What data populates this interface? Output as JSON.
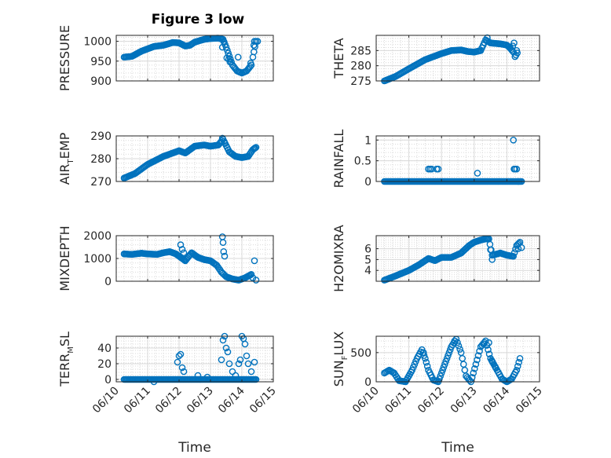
{
  "figure": {
    "title": "Figure 3 low"
  },
  "chart_data": [
    {
      "type": "scatter",
      "position": "top-left",
      "ylabel_main": "PRESSURE",
      "ylabel_sub": "",
      "ylim": [
        900,
        1015
      ],
      "yticks": [
        900,
        950,
        1000
      ],
      "yticklabels": [
        "900",
        "950",
        "1000"
      ],
      "xlim": [
        0,
        5
      ],
      "xticks": [
        0,
        1,
        2,
        3,
        4,
        5
      ],
      "show_xticklabels": false,
      "grid": true,
      "minor_grid": true,
      "keyframes": [
        [
          0.25,
          960
        ],
        [
          0.5,
          962
        ],
        [
          0.8,
          975
        ],
        [
          1.2,
          987
        ],
        [
          1.5,
          990
        ],
        [
          1.8,
          997
        ],
        [
          2.0,
          996
        ],
        [
          2.2,
          988
        ],
        [
          2.35,
          990
        ],
        [
          2.5,
          998
        ],
        [
          2.8,
          1005
        ],
        [
          3.0,
          1007
        ],
        [
          3.25,
          1008
        ],
        [
          3.4,
          1005
        ],
        [
          3.5,
          985
        ],
        [
          3.7,
          940
        ],
        [
          3.85,
          925
        ],
        [
          4.0,
          920
        ],
        [
          4.15,
          925
        ],
        [
          4.3,
          940
        ],
        [
          4.35,
          960
        ],
        [
          4.45,
          1000
        ]
      ],
      "extra_points": [
        [
          3.38,
          985
        ],
        [
          3.42,
          1000
        ],
        [
          3.52,
          958
        ],
        [
          3.58,
          955
        ],
        [
          3.62,
          948
        ],
        [
          3.88,
          960
        ],
        [
          4.28,
          945
        ],
        [
          4.4,
          1000
        ],
        [
          4.5,
          1000
        ],
        [
          4.38,
          990
        ]
      ]
    },
    {
      "type": "scatter",
      "position": "top-right",
      "ylabel_main": "THETA",
      "ylabel_sub": "",
      "ylim": [
        275,
        290
      ],
      "yticks": [
        275,
        280,
        285
      ],
      "yticklabels": [
        "275",
        "280",
        "285"
      ],
      "xlim": [
        0,
        5
      ],
      "xticks": [
        0,
        1,
        2,
        3,
        4,
        5
      ],
      "show_xticklabels": false,
      "grid": true,
      "minor_grid": true,
      "keyframes": [
        [
          0.25,
          275
        ],
        [
          0.6,
          276.5
        ],
        [
          1.0,
          279
        ],
        [
          1.5,
          282
        ],
        [
          2.0,
          284
        ],
        [
          2.3,
          285
        ],
        [
          2.6,
          285.2
        ],
        [
          2.8,
          284.7
        ],
        [
          3.0,
          284.5
        ],
        [
          3.2,
          285
        ],
        [
          3.35,
          288.5
        ],
        [
          3.5,
          287.5
        ],
        [
          3.8,
          287.2
        ],
        [
          4.0,
          286.8
        ],
        [
          4.1,
          285.8
        ],
        [
          4.2,
          284.5
        ],
        [
          4.25,
          283
        ],
        [
          4.3,
          285
        ]
      ],
      "extra_points": [
        [
          3.4,
          289.2
        ],
        [
          4.18,
          286.5
        ],
        [
          4.22,
          287.5
        ],
        [
          4.28,
          283.5
        ],
        [
          4.32,
          284.2
        ]
      ]
    },
    {
      "type": "scatter",
      "position": "middle-left",
      "ylabel_main": "AIR",
      "ylabel_sub": "T",
      "ylabel_tail": "EMP",
      "ylim": [
        270,
        290
      ],
      "yticks": [
        270,
        280,
        290
      ],
      "yticklabels": [
        "270",
        "280",
        "290"
      ],
      "xlim": [
        0,
        5
      ],
      "xticks": [
        0,
        1,
        2,
        3,
        4,
        5
      ],
      "show_xticklabels": false,
      "grid": true,
      "minor_grid": true,
      "keyframes": [
        [
          0.25,
          271.5
        ],
        [
          0.6,
          273.5
        ],
        [
          1.0,
          277.5
        ],
        [
          1.5,
          281
        ],
        [
          2.0,
          283.5
        ],
        [
          2.2,
          282.5
        ],
        [
          2.5,
          285.5
        ],
        [
          2.8,
          286
        ],
        [
          3.0,
          285.5
        ],
        [
          3.25,
          286
        ],
        [
          3.4,
          288.5
        ],
        [
          3.6,
          283
        ],
        [
          3.8,
          281
        ],
        [
          4.0,
          280.5
        ],
        [
          4.2,
          281
        ],
        [
          4.35,
          284
        ],
        [
          4.45,
          285
        ]
      ],
      "extra_points": [
        [
          3.38,
          289
        ],
        [
          3.45,
          287
        ],
        [
          4.4,
          284.5
        ]
      ]
    },
    {
      "type": "scatter",
      "position": "middle-right",
      "ylabel_main": "RAINFALL",
      "ylabel_sub": "",
      "ylim": [
        0,
        1.1
      ],
      "yticks": [
        0,
        0.5,
        1
      ],
      "yticklabels": [
        "0",
        "0.5",
        "1"
      ],
      "xlim": [
        0,
        5
      ],
      "xticks": [
        0,
        1,
        2,
        3,
        4,
        5
      ],
      "show_xticklabels": false,
      "grid": true,
      "minor_grid": true,
      "keyframes": [
        [
          0.25,
          0
        ],
        [
          4.45,
          0
        ]
      ],
      "extra_points": [
        [
          1.6,
          0.3
        ],
        [
          1.65,
          0.3
        ],
        [
          1.7,
          0.3
        ],
        [
          1.85,
          0.3
        ],
        [
          1.9,
          0.3
        ],
        [
          3.1,
          0.2
        ],
        [
          4.2,
          1.0
        ],
        [
          4.22,
          0.3
        ],
        [
          4.25,
          0.3
        ],
        [
          4.3,
          0.3
        ],
        [
          4.35,
          0
        ]
      ]
    },
    {
      "type": "scatter",
      "position": "lower-left",
      "ylabel_main": "MIXDEPTH",
      "ylabel_sub": "",
      "ylim": [
        0,
        2000
      ],
      "yticks": [
        0,
        1000,
        2000
      ],
      "yticklabels": [
        "0",
        "1000",
        "2000"
      ],
      "xlim": [
        0,
        5
      ],
      "xticks": [
        0,
        1,
        2,
        3,
        4,
        5
      ],
      "show_xticklabels": false,
      "grid": true,
      "minor_grid": true,
      "keyframes": [
        [
          0.25,
          1200
        ],
        [
          0.5,
          1180
        ],
        [
          0.8,
          1230
        ],
        [
          1.0,
          1200
        ],
        [
          1.3,
          1180
        ],
        [
          1.5,
          1250
        ],
        [
          1.7,
          1300
        ],
        [
          1.9,
          1200
        ],
        [
          2.0,
          1100
        ],
        [
          2.2,
          900
        ],
        [
          2.4,
          1250
        ],
        [
          2.6,
          1050
        ],
        [
          2.8,
          950
        ],
        [
          3.0,
          900
        ],
        [
          3.2,
          700
        ],
        [
          3.35,
          400
        ],
        [
          3.5,
          200
        ],
        [
          3.7,
          100
        ],
        [
          3.9,
          50
        ],
        [
          4.1,
          150
        ],
        [
          4.3,
          300
        ]
      ],
      "extra_points": [
        [
          2.05,
          1600
        ],
        [
          2.1,
          1400
        ],
        [
          2.15,
          1250
        ],
        [
          3.38,
          1950
        ],
        [
          3.4,
          1700
        ],
        [
          3.42,
          1300
        ],
        [
          3.45,
          1100
        ],
        [
          4.4,
          900
        ],
        [
          4.35,
          150
        ],
        [
          4.45,
          50
        ]
      ]
    },
    {
      "type": "scatter",
      "position": "lower-right",
      "ylabel_main": "H2OMIXRA",
      "ylabel_sub": "",
      "ylim": [
        3,
        7.2
      ],
      "yticks": [
        4,
        5,
        6
      ],
      "yticklabels": [
        "4",
        "5",
        "6"
      ],
      "xlim": [
        0,
        5
      ],
      "xticks": [
        0,
        1,
        2,
        3,
        4,
        5
      ],
      "show_xticklabels": false,
      "grid": true,
      "minor_grid": true,
      "keyframes": [
        [
          0.25,
          3.1
        ],
        [
          0.6,
          3.5
        ],
        [
          1.0,
          4.0
        ],
        [
          1.3,
          4.5
        ],
        [
          1.6,
          5.1
        ],
        [
          1.8,
          4.9
        ],
        [
          2.0,
          5.2
        ],
        [
          2.3,
          5.2
        ],
        [
          2.6,
          5.6
        ],
        [
          2.85,
          6.3
        ],
        [
          3.0,
          6.6
        ],
        [
          3.2,
          6.8
        ],
        [
          3.35,
          6.9
        ],
        [
          3.45,
          6.9
        ],
        [
          3.55,
          5.4
        ],
        [
          3.8,
          5.6
        ],
        [
          4.0,
          5.4
        ],
        [
          4.2,
          5.3
        ],
        [
          4.3,
          6.3
        ],
        [
          4.4,
          6.6
        ]
      ],
      "extra_points": [
        [
          3.5,
          5.9
        ],
        [
          3.55,
          5.0
        ],
        [
          4.35,
          6.0
        ],
        [
          4.45,
          6.1
        ]
      ]
    },
    {
      "type": "scatter",
      "position": "bottom-left",
      "ylabel_main": "TERR",
      "ylabel_sub": "M",
      "ylabel_tail": "SL",
      "ylim": [
        -3,
        55
      ],
      "yticks": [
        0,
        20,
        40
      ],
      "yticklabels": [
        "0",
        "20",
        "40"
      ],
      "xlim": [
        0,
        5
      ],
      "xticks": [
        0,
        1,
        2,
        3,
        4,
        5
      ],
      "show_xticklabels": true,
      "xticklabels": [
        "06/10",
        "06/11",
        "06/12",
        "06/13",
        "06/14",
        "06/15"
      ],
      "xlabel": "Time",
      "grid": true,
      "minor_grid": true,
      "keyframes": [
        [
          0.25,
          0
        ],
        [
          4.45,
          0
        ]
      ],
      "extra_points": [
        [
          1.2,
          -3
        ],
        [
          1.95,
          22
        ],
        [
          2.0,
          30
        ],
        [
          2.05,
          32
        ],
        [
          2.1,
          15
        ],
        [
          2.15,
          10
        ],
        [
          2.6,
          5
        ],
        [
          2.9,
          3
        ],
        [
          3.35,
          25
        ],
        [
          3.4,
          50
        ],
        [
          3.45,
          55
        ],
        [
          3.5,
          40
        ],
        [
          3.55,
          35
        ],
        [
          3.6,
          20
        ],
        [
          3.7,
          10
        ],
        [
          3.8,
          5
        ],
        [
          3.95,
          25
        ],
        [
          4.0,
          55
        ],
        [
          4.05,
          52
        ],
        [
          4.1,
          45
        ],
        [
          4.15,
          30
        ],
        [
          4.2,
          20
        ],
        [
          4.3,
          10
        ],
        [
          4.4,
          22
        ],
        [
          3.9,
          20
        ]
      ]
    },
    {
      "type": "scatter",
      "position": "bottom-right",
      "ylabel_main": "SUN",
      "ylabel_sub": "F",
      "ylabel_tail": "LUX",
      "ylim": [
        0,
        780
      ],
      "yticks": [
        0,
        500
      ],
      "yticklabels": [
        "0",
        "500"
      ],
      "xlim": [
        0,
        5
      ],
      "xticks": [
        0,
        1,
        2,
        3,
        4,
        5
      ],
      "show_xticklabels": true,
      "xticklabels": [
        "06/10",
        "06/11",
        "06/12",
        "06/13",
        "06/14",
        "06/15"
      ],
      "xlabel": "Time",
      "grid": true,
      "minor_grid": true,
      "keyframes": [
        [
          0.25,
          150
        ],
        [
          0.4,
          200
        ],
        [
          0.55,
          150
        ],
        [
          0.7,
          20
        ],
        [
          0.9,
          0
        ],
        [
          1.1,
          200
        ],
        [
          1.25,
          400
        ],
        [
          1.4,
          550
        ],
        [
          1.5,
          400
        ],
        [
          1.6,
          200
        ],
        [
          1.75,
          30
        ],
        [
          1.9,
          0
        ],
        [
          2.1,
          300
        ],
        [
          2.3,
          600
        ],
        [
          2.45,
          730
        ],
        [
          2.6,
          500
        ],
        [
          2.75,
          100
        ],
        [
          2.9,
          0
        ],
        [
          3.05,
          300
        ],
        [
          3.2,
          600
        ],
        [
          3.35,
          700
        ],
        [
          3.5,
          400
        ],
        [
          3.6,
          300
        ],
        [
          3.7,
          200
        ],
        [
          3.85,
          50
        ],
        [
          4.0,
          0
        ],
        [
          4.15,
          50
        ],
        [
          4.3,
          200
        ],
        [
          4.4,
          400
        ]
      ],
      "extra_points": [
        [
          1.45,
          500
        ],
        [
          2.4,
          700
        ],
        [
          3.3,
          650
        ],
        [
          3.45,
          670
        ],
        [
          3.55,
          350
        ],
        [
          3.65,
          250
        ]
      ]
    }
  ]
}
